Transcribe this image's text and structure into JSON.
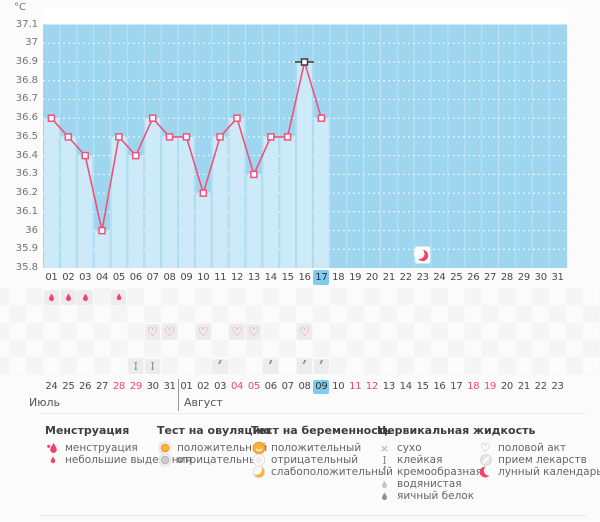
{
  "colors": {
    "plot_bg": "#9fd6ef",
    "bar": "#cdeaf8",
    "line_pink": "#f0517a",
    "icon_pink": "#f5426c",
    "highlight_blue": "#7fccf0",
    "weekend_red": "#f9426e",
    "orange": "#fdb03c",
    "selected_marker": "#3a3a3a"
  },
  "chart_data": {
    "type": "line",
    "title": "",
    "xlabel": "",
    "ylabel": "°C",
    "ylim": [
      35.8,
      37.1
    ],
    "ytick_step": 0.1,
    "yticks": [
      "37.1",
      "37",
      "36.9",
      "36.8",
      "36.7",
      "36.6",
      "36.5",
      "36.4",
      "36.3",
      "36.2",
      "36.1",
      "36",
      "35.9",
      "35.8"
    ],
    "x_labels": [
      "01",
      "02",
      "03",
      "04",
      "05",
      "06",
      "07",
      "08",
      "09",
      "10",
      "11",
      "12",
      "13",
      "14",
      "15",
      "16",
      "17",
      "18",
      "19",
      "20",
      "21",
      "22",
      "23",
      "24",
      "25",
      "26",
      "27",
      "28",
      "29",
      "30",
      "31"
    ],
    "grid": "horizontal-dotted",
    "legend_position": "bottom",
    "points": [
      {
        "day": 1,
        "temp": 36.6
      },
      {
        "day": 2,
        "temp": 36.5
      },
      {
        "day": 3,
        "temp": 36.4
      },
      {
        "day": 4,
        "temp": 36.0
      },
      {
        "day": 5,
        "temp": 36.5
      },
      {
        "day": 6,
        "temp": 36.4
      },
      {
        "day": 7,
        "temp": 36.6
      },
      {
        "day": 8,
        "temp": 36.5
      },
      {
        "day": 9,
        "temp": 36.5
      },
      {
        "day": 10,
        "temp": 36.2
      },
      {
        "day": 11,
        "temp": 36.5
      },
      {
        "day": 12,
        "temp": 36.6
      },
      {
        "day": 13,
        "temp": 36.3
      },
      {
        "day": 14,
        "temp": 36.5
      },
      {
        "day": 15,
        "temp": 36.5
      },
      {
        "day": 16,
        "temp": 36.9
      },
      {
        "day": 17,
        "temp": 36.6
      }
    ],
    "selected_day": 16,
    "highlighted_cycle_day": "17",
    "lunar_icon_day": 23
  },
  "event_rows": [
    {
      "key": "menstruation",
      "icons": {
        "1": "menstruation",
        "2": "menstruation",
        "3": "menstruation",
        "5": "spotting"
      }
    },
    {
      "key": "ovulation-test",
      "icons": {}
    },
    {
      "key": "intercourse",
      "icons": {
        "7": "intercourse",
        "8": "intercourse",
        "10": "intercourse",
        "12": "intercourse",
        "13": "intercourse",
        "16": "intercourse"
      }
    },
    {
      "key": "pregnancy-test",
      "icons": {}
    },
    {
      "key": "cervical-fluid",
      "icons": {
        "6": "sticky",
        "7": "sticky",
        "11": "creamy",
        "14": "creamy",
        "16": "creamy",
        "17": "creamy"
      }
    }
  ],
  "calendar": {
    "months": [
      {
        "label": "Июль",
        "dates": [
          {
            "d": "24"
          },
          {
            "d": "25"
          },
          {
            "d": "26"
          },
          {
            "d": "27"
          },
          {
            "d": "28",
            "weekend": true
          },
          {
            "d": "29",
            "weekend": true
          },
          {
            "d": "30"
          },
          {
            "d": "31"
          }
        ]
      },
      {
        "label": "Август",
        "dates": [
          {
            "d": "01"
          },
          {
            "d": "02"
          },
          {
            "d": "03"
          },
          {
            "d": "04",
            "weekend": true
          },
          {
            "d": "05",
            "weekend": true
          },
          {
            "d": "06"
          },
          {
            "d": "07"
          },
          {
            "d": "08"
          },
          {
            "d": "09",
            "highlighted": true
          },
          {
            "d": "10"
          },
          {
            "d": "11",
            "weekend": true
          },
          {
            "d": "12",
            "weekend": true
          },
          {
            "d": "13"
          },
          {
            "d": "14"
          },
          {
            "d": "15"
          },
          {
            "d": "16"
          },
          {
            "d": "17"
          },
          {
            "d": "18",
            "weekend": true
          },
          {
            "d": "19",
            "weekend": true
          },
          {
            "d": "20"
          },
          {
            "d": "21"
          },
          {
            "d": "22"
          },
          {
            "d": "23"
          }
        ]
      }
    ]
  },
  "legend": {
    "sections": [
      {
        "title": "Менструация",
        "items": [
          {
            "icon": "menstruation-legend",
            "label": "менструация"
          },
          {
            "icon": "spotting",
            "label": "небольшие выделения"
          }
        ]
      },
      {
        "title": "Тест на овуляцию",
        "items": [
          {
            "icon": "ovulation-positive",
            "label": "положительный"
          },
          {
            "icon": "ovulation-negative",
            "label": "отрицательный"
          }
        ]
      },
      {
        "title": "Тест на беременность",
        "items": [
          {
            "icon": "pregnancy-positive",
            "label": "положительный"
          },
          {
            "icon": "pregnancy-negative",
            "label": "отрицательный"
          },
          {
            "icon": "pregnancy-weak",
            "label": "слабоположительный"
          }
        ]
      },
      {
        "title": "Цервикальная жидкость",
        "items": [
          {
            "icon": "dry",
            "label": "сухо"
          },
          {
            "icon": "sticky",
            "label": "клейкая"
          },
          {
            "icon": "creamy",
            "label": "кремообразная"
          },
          {
            "icon": "watery",
            "label": "водянистая"
          },
          {
            "icon": "egg-white",
            "label": "яичный белок"
          }
        ]
      },
      {
        "title": "",
        "items": [
          {
            "icon": "intercourse",
            "label": "половой акт"
          },
          {
            "icon": "medication",
            "label": "прием лекарств"
          },
          {
            "icon": "lunar",
            "label": "лунный календарь"
          }
        ]
      }
    ]
  }
}
